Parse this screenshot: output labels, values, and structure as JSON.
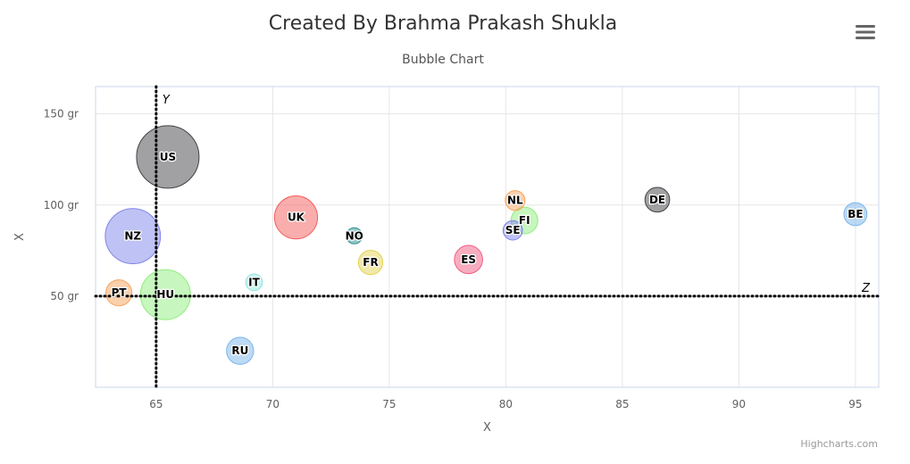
{
  "header": {
    "title": "Created By Brahma Prakash Shukla",
    "subtitle": "Bubble Chart",
    "menu_icon": "hamburger-menu-icon"
  },
  "credits": "Highcharts.com",
  "chart_data": {
    "type": "scatter",
    "variant": "bubble",
    "title": "Created By Brahma Prakash Shukla",
    "subtitle": "Bubble Chart",
    "xlabel": "X",
    "ylabel": "X",
    "xlim": [
      62.4,
      96
    ],
    "ylim": [
      0,
      165
    ],
    "x_ticks": [
      65,
      70,
      75,
      80,
      85,
      90,
      95
    ],
    "y_ticks": [
      50,
      100,
      150
    ],
    "y_tick_suffix": " gr",
    "grid": true,
    "plot_lines": [
      {
        "axis": "x",
        "value": 65,
        "label": "Y",
        "style": "dotted"
      },
      {
        "axis": "y",
        "value": 50,
        "label": "Z",
        "style": "dotted"
      }
    ],
    "points": [
      {
        "x": 95.0,
        "y": 95.0,
        "z": 13.8,
        "name": "BE",
        "color": "#7cb5ec"
      },
      {
        "x": 86.5,
        "y": 102.9,
        "z": 14.7,
        "name": "DE",
        "color": "#434348"
      },
      {
        "x": 80.8,
        "y": 91.5,
        "z": 15.8,
        "name": "FI",
        "color": "#90ed7d"
      },
      {
        "x": 80.4,
        "y": 102.5,
        "z": 12.0,
        "name": "NL",
        "color": "#f7a35c"
      },
      {
        "x": 80.3,
        "y": 86.1,
        "z": 11.8,
        "name": "SE",
        "color": "#8085e9"
      },
      {
        "x": 78.4,
        "y": 70.1,
        "z": 16.6,
        "name": "ES",
        "color": "#f15c80"
      },
      {
        "x": 74.2,
        "y": 68.5,
        "z": 14.5,
        "name": "FR",
        "color": "#e4d354"
      },
      {
        "x": 73.5,
        "y": 83.1,
        "z": 10.0,
        "name": "NO",
        "color": "#2b908f"
      },
      {
        "x": 71.0,
        "y": 93.2,
        "z": 24.7,
        "name": "UK",
        "color": "#f45b5b"
      },
      {
        "x": 69.2,
        "y": 57.6,
        "z": 10.4,
        "name": "IT",
        "color": "#91e8e1"
      },
      {
        "x": 68.6,
        "y": 20.0,
        "z": 16.0,
        "name": "RU",
        "color": "#7cb5ec"
      },
      {
        "x": 65.5,
        "y": 126.4,
        "z": 35.3,
        "name": "US",
        "color": "#434348"
      },
      {
        "x": 65.4,
        "y": 50.8,
        "z": 28.5,
        "name": "HU",
        "color": "#90ed7d"
      },
      {
        "x": 63.4,
        "y": 51.8,
        "z": 15.4,
        "name": "PT",
        "color": "#f7a35c"
      },
      {
        "x": 64.0,
        "y": 82.9,
        "z": 31.3,
        "name": "NZ",
        "color": "#8085e9"
      }
    ]
  }
}
